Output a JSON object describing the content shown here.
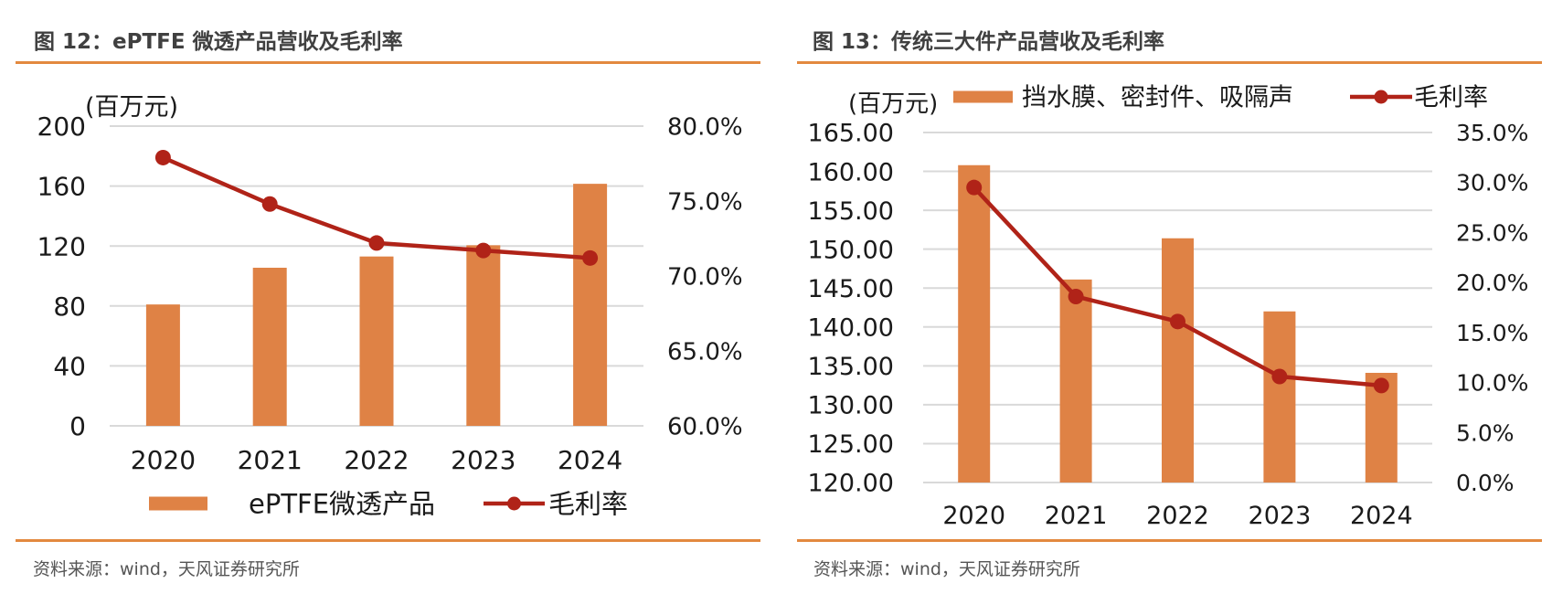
{
  "colors": {
    "bar": "#DF8245",
    "line": "#B02318",
    "rule": "#E3893F",
    "grid": "#D9D9D9",
    "title": "#404040"
  },
  "figures": [
    {
      "title": "图 12：ePTFE 微透产品营收及毛利率",
      "source": "资料来源：wind，天风证券研究所"
    },
    {
      "title": "图 13：传统三大件产品营收及毛利率",
      "source": "资料来源：wind，天风证券研究所"
    }
  ],
  "chart_data": [
    {
      "type": "bar",
      "title": "图 12：ePTFE 微透产品营收及毛利率",
      "ylabel": "(百万元)",
      "categories": [
        "2020",
        "2021",
        "2022",
        "2023",
        "2024"
      ],
      "ylim": [
        0,
        200
      ],
      "yticks": [
        "0",
        "40",
        "80",
        "120",
        "160",
        "200"
      ],
      "y2lim": [
        60,
        80
      ],
      "y2ticks": [
        "60.0%",
        "65.0%",
        "70.0%",
        "75.0%",
        "80.0%"
      ],
      "grid": true,
      "legend_position": "bottom",
      "series": [
        {
          "name": "ePTFE微透产品",
          "type": "bar",
          "axis": "left",
          "values": [
            81,
            105.5,
            113,
            120.5,
            161.5
          ]
        },
        {
          "name": "毛利率",
          "type": "line",
          "axis": "right",
          "unit": "%",
          "values": [
            77.9,
            74.8,
            72.2,
            71.7,
            71.2
          ]
        }
      ]
    },
    {
      "type": "bar",
      "title": "图 13：传统三大件产品营收及毛利率",
      "ylabel": "(百万元)",
      "categories": [
        "2020",
        "2021",
        "2022",
        "2023",
        "2024"
      ],
      "ylim": [
        120,
        165
      ],
      "yticks": [
        "120.00",
        "125.00",
        "130.00",
        "135.00",
        "140.00",
        "145.00",
        "150.00",
        "155.00",
        "160.00",
        "165.00"
      ],
      "y2lim": [
        0,
        35
      ],
      "y2ticks": [
        "0.0%",
        "5.0%",
        "10.0%",
        "15.0%",
        "20.0%",
        "25.0%",
        "30.0%",
        "35.0%"
      ],
      "grid": true,
      "legend_position": "top",
      "series": [
        {
          "name": "挡水膜、密封件、吸隔声",
          "type": "bar",
          "axis": "left",
          "values": [
            160.8,
            146.1,
            151.4,
            142.0,
            134.1
          ]
        },
        {
          "name": "毛利率",
          "type": "line",
          "axis": "right",
          "unit": "%",
          "values": [
            29.5,
            18.6,
            16.1,
            10.6,
            9.7
          ]
        }
      ]
    }
  ]
}
